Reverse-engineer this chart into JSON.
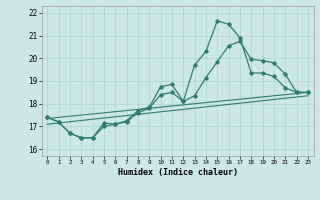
{
  "title": "",
  "xlabel": "Humidex (Indice chaleur)",
  "ylabel": "",
  "background_color": "#cce8e4",
  "grid_color": "#aad4cf",
  "line_color": "#2d7d6e",
  "xlim": [
    -0.5,
    23.5
  ],
  "ylim": [
    15.7,
    22.3
  ],
  "xticks": [
    0,
    1,
    2,
    3,
    4,
    5,
    6,
    7,
    8,
    9,
    10,
    11,
    12,
    13,
    14,
    15,
    16,
    17,
    18,
    19,
    20,
    21,
    22,
    23
  ],
  "yticks": [
    16,
    17,
    18,
    19,
    20,
    21,
    22
  ],
  "line1_x": [
    0,
    1,
    2,
    3,
    4,
    5,
    6,
    7,
    8,
    9,
    10,
    11,
    12,
    13,
    14,
    15,
    16,
    17,
    18,
    19,
    20,
    21,
    22,
    23
  ],
  "line1_y": [
    17.4,
    17.2,
    16.7,
    16.5,
    16.5,
    17.15,
    17.1,
    17.25,
    17.7,
    17.85,
    18.75,
    18.85,
    18.1,
    19.7,
    20.3,
    21.65,
    21.5,
    20.9,
    19.35,
    19.35,
    19.2,
    18.7,
    18.5,
    18.5
  ],
  "line2_x": [
    0,
    1,
    2,
    3,
    4,
    5,
    6,
    7,
    8,
    9,
    10,
    11,
    12,
    13,
    14,
    15,
    16,
    17,
    18,
    19,
    20,
    21,
    22,
    23
  ],
  "line2_y": [
    17.4,
    17.2,
    16.7,
    16.5,
    16.5,
    17.0,
    17.1,
    17.2,
    17.6,
    17.8,
    18.4,
    18.5,
    18.1,
    18.35,
    19.15,
    19.85,
    20.55,
    20.75,
    19.95,
    19.9,
    19.8,
    19.3,
    18.5,
    18.5
  ],
  "trend1_x": [
    0,
    23
  ],
  "trend1_y": [
    17.35,
    18.5
  ],
  "trend2_x": [
    0,
    23
  ],
  "trend2_y": [
    17.1,
    18.35
  ]
}
